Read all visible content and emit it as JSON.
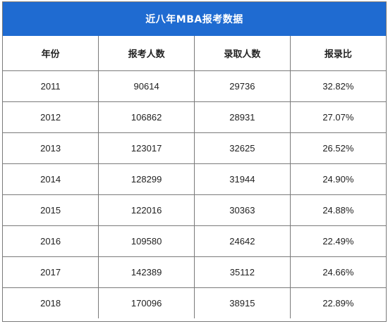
{
  "title": "近八年MBA报考数据",
  "columns": [
    "年份",
    "报考人数",
    "录取人数",
    "报录比"
  ],
  "rows": [
    [
      "2011",
      "90614",
      "29736",
      "32.82%"
    ],
    [
      "2012",
      "106862",
      "28931",
      "27.07%"
    ],
    [
      "2013",
      "123017",
      "32625",
      "26.52%"
    ],
    [
      "2014",
      "128299",
      "31944",
      "24.90%"
    ],
    [
      "2015",
      "122016",
      "30363",
      "24.88%"
    ],
    [
      "2016",
      "109580",
      "24642",
      "22.49%"
    ],
    [
      "2017",
      "142389",
      "35112",
      "24.66%"
    ],
    [
      "2018",
      "170096",
      "38915",
      "22.89%"
    ]
  ],
  "colors": {
    "header_bg": "#1f6bd1",
    "header_text": "#ffffff",
    "border": "#7a7a7a"
  }
}
